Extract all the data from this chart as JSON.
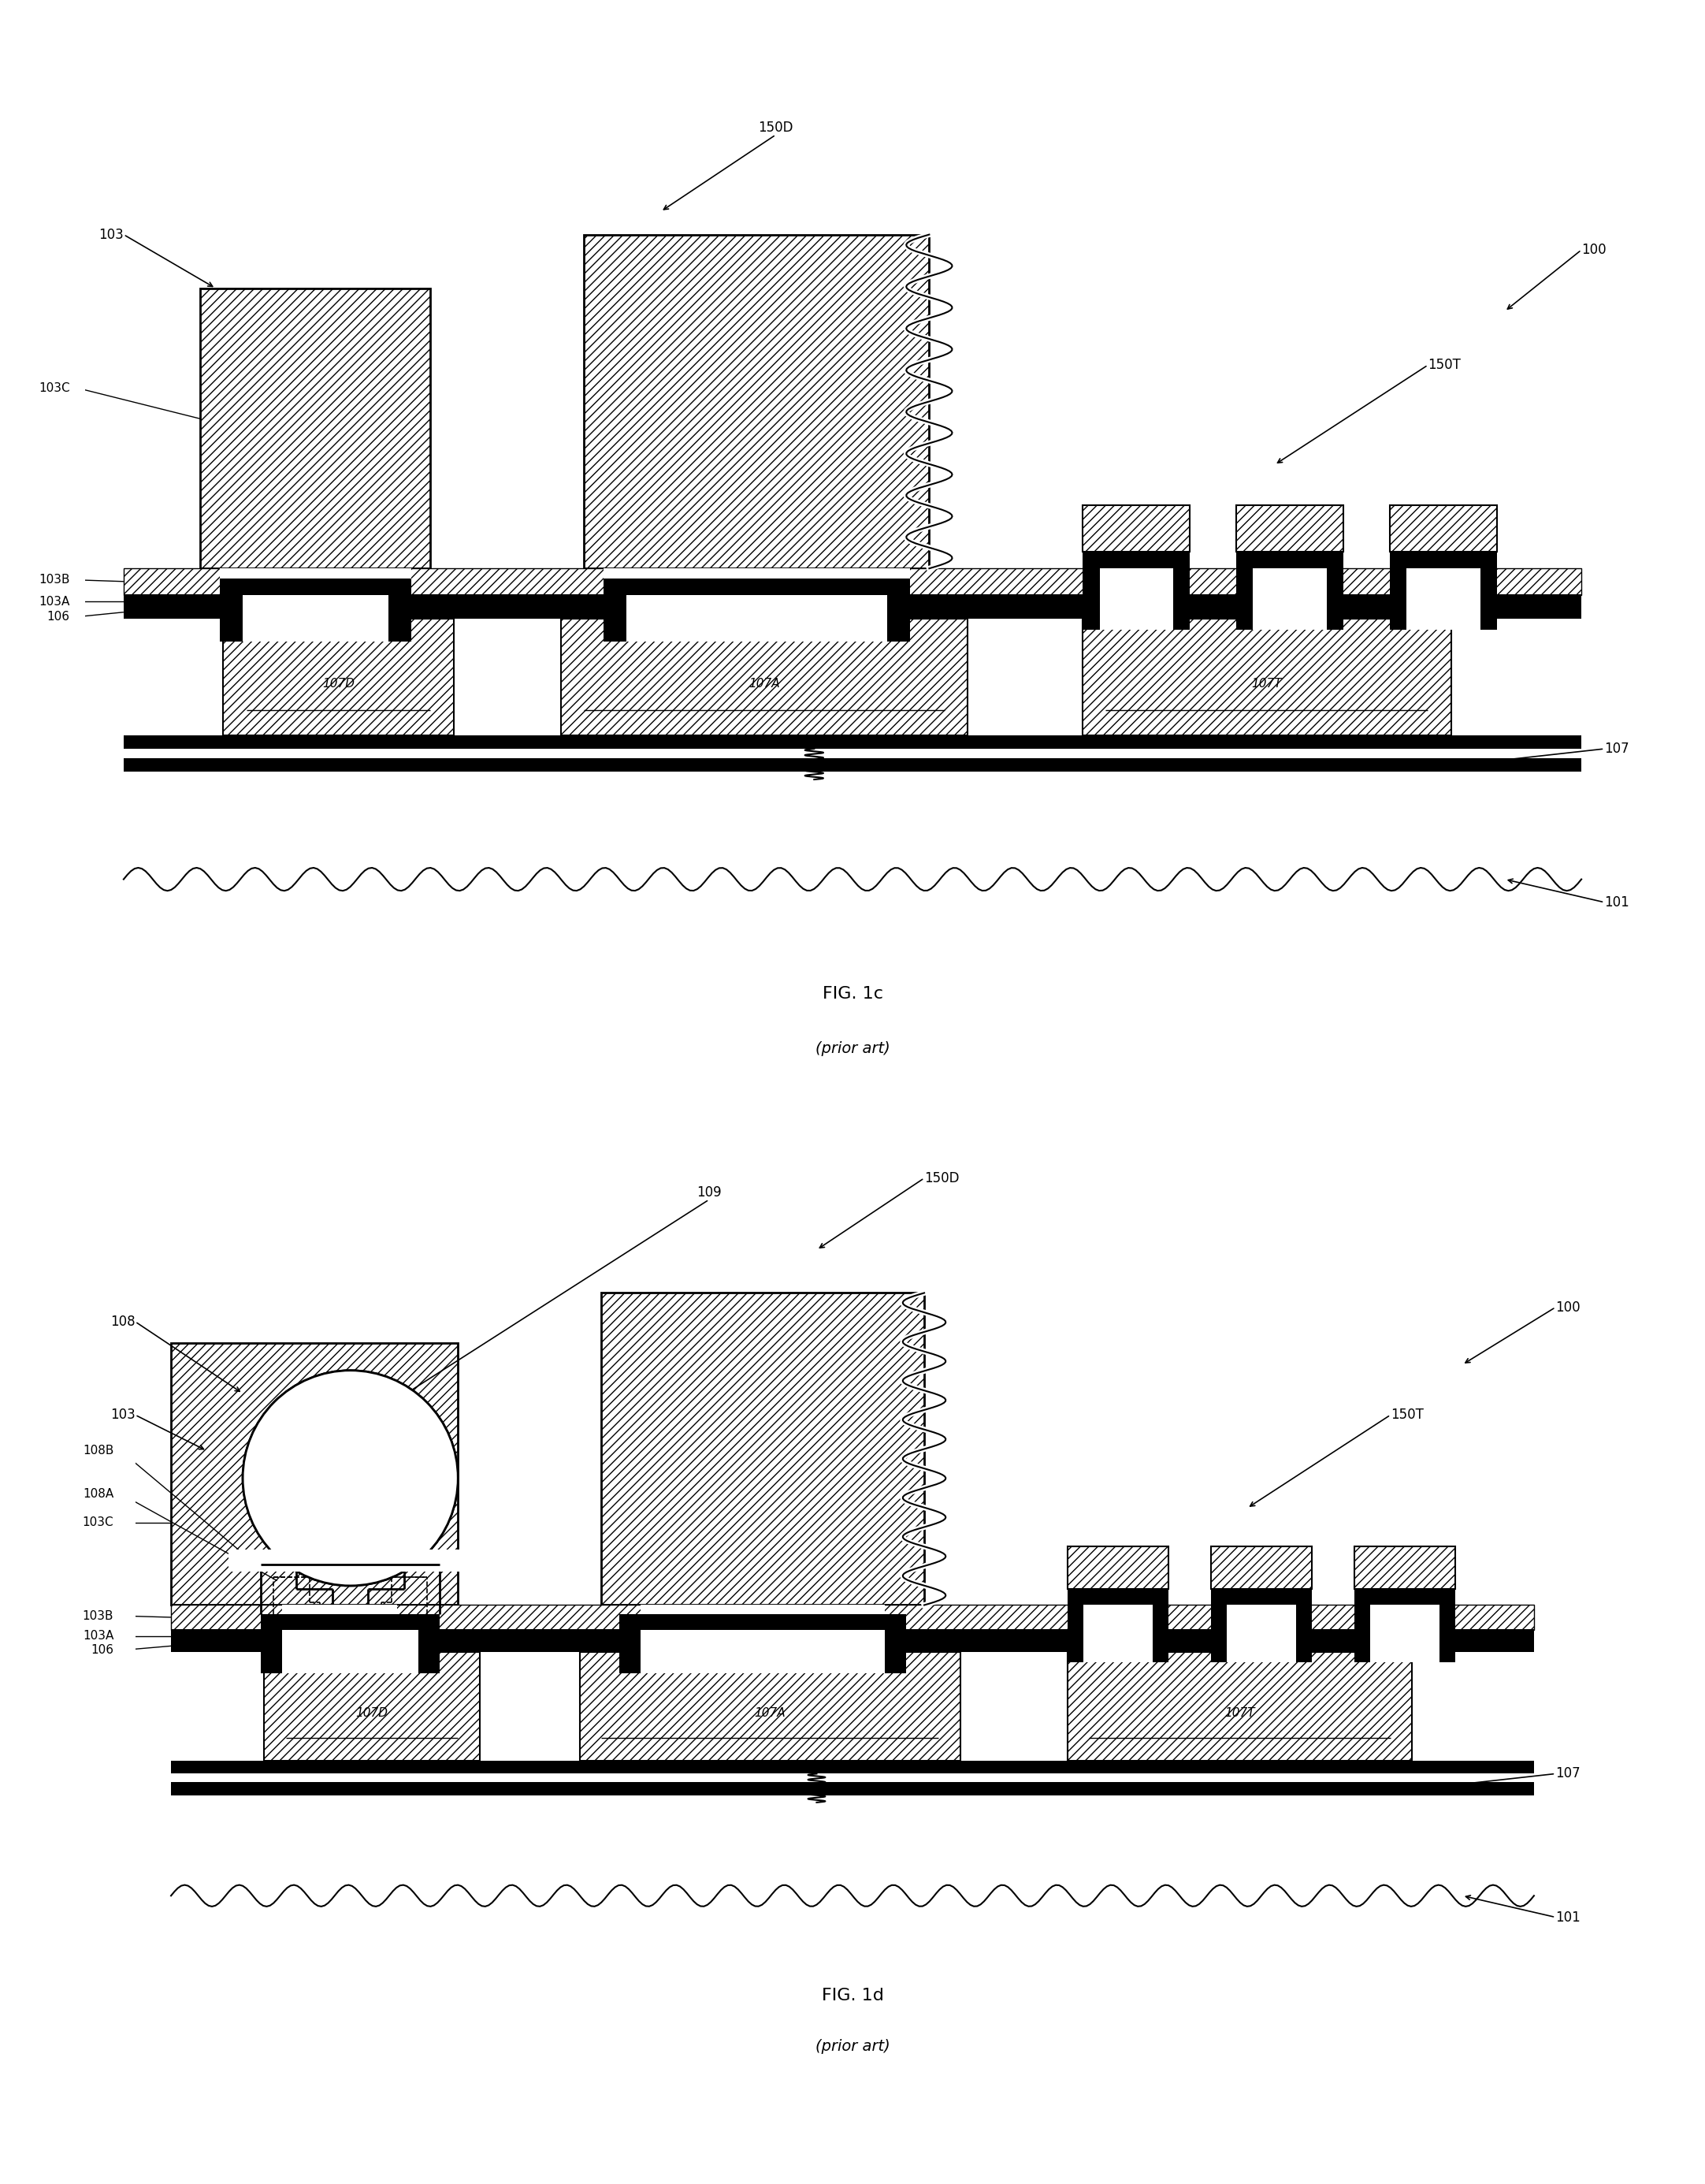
{
  "fig_width": 21.64,
  "fig_height": 27.71,
  "fig1c_title": "FIG. 1c",
  "fig1c_subtitle": "(prior art)",
  "fig1d_title": "FIG. 1d",
  "fig1d_subtitle": "(prior art)"
}
